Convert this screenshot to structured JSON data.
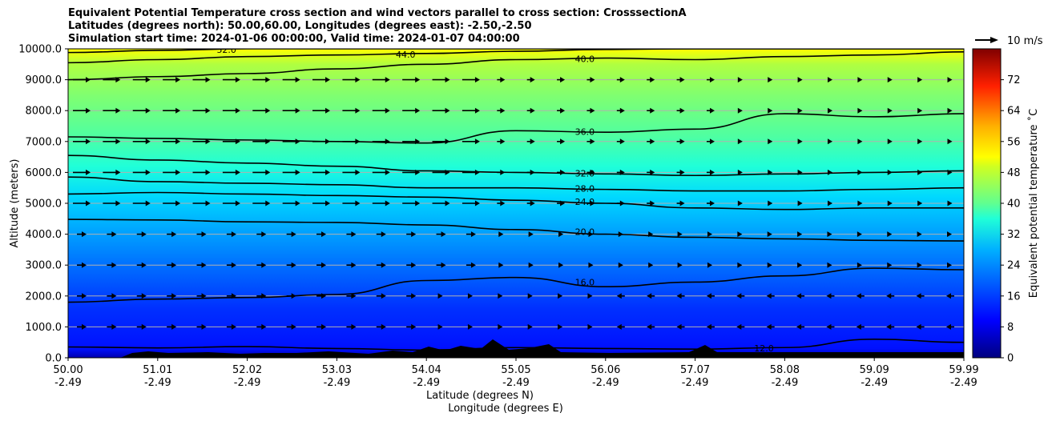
{
  "header": {
    "title_line1": "Equivalent Potential Temperature cross section and wind vectors parallel to cross section: CrosssectionA",
    "title_line2": "Latitudes (degrees north): 50.00,60.00, Longitudes (degrees east): -2.50,-2.50",
    "title_line3": "Simulation start time: 2024-01-06 00:00:00, Valid time: 2024-01-07 04:00:00"
  },
  "chart_data": {
    "type": "heatmap",
    "ylabel": "Altitude (meters)",
    "xlabel_lat": "Latitude (degrees N)",
    "xlabel_lon": "Longitude (degrees E)",
    "ylim": [
      0,
      10000
    ],
    "y_ticks": [
      "0.0",
      "1000.0",
      "2000.0",
      "3000.0",
      "4000.0",
      "5000.0",
      "6000.0",
      "7000.0",
      "8000.0",
      "9000.0",
      "10000.0"
    ],
    "x_ticks": [
      {
        "lat": "50.00",
        "lon": "-2.49"
      },
      {
        "lat": "51.01",
        "lon": "-2.49"
      },
      {
        "lat": "52.02",
        "lon": "-2.49"
      },
      {
        "lat": "53.03",
        "lon": "-2.49"
      },
      {
        "lat": "54.04",
        "lon": "-2.49"
      },
      {
        "lat": "55.05",
        "lon": "-2.49"
      },
      {
        "lat": "56.06",
        "lon": "-2.49"
      },
      {
        "lat": "57.07",
        "lon": "-2.49"
      },
      {
        "lat": "58.08",
        "lon": "-2.49"
      },
      {
        "lat": "59.09",
        "lon": "-2.49"
      },
      {
        "lat": "59.99",
        "lon": "-2.49"
      }
    ],
    "colorbar": {
      "label": "Equivalent potential temperature ˚C",
      "min": 0,
      "max": 80,
      "ticks": [
        "0",
        "8",
        "16",
        "24",
        "32",
        "40",
        "48",
        "56",
        "64",
        "72"
      ]
    },
    "quiver_key": "10 m/s",
    "contours": [
      {
        "level": 12,
        "label": "12.0",
        "alt_m": [
          350,
          320,
          360,
          300,
          250,
          330,
          300,
          280,
          330,
          600,
          500
        ]
      },
      {
        "level": 16,
        "label": "16.0",
        "alt_m": [
          1800,
          1900,
          1950,
          2050,
          2500,
          2600,
          2300,
          2450,
          2650,
          2900,
          2850
        ]
      },
      {
        "level": 20,
        "label": "20.0",
        "alt_m": [
          4480,
          4460,
          4400,
          4380,
          4300,
          4150,
          4000,
          3900,
          3850,
          3800,
          3780
        ]
      },
      {
        "level": 24,
        "label": "24.0",
        "alt_m": [
          5300,
          5350,
          5300,
          5250,
          5200,
          5100,
          5000,
          4850,
          4800,
          4850,
          4850
        ]
      },
      {
        "level": 28,
        "label": "28.0",
        "alt_m": [
          5850,
          5700,
          5650,
          5600,
          5500,
          5500,
          5450,
          5400,
          5400,
          5450,
          5500
        ]
      },
      {
        "level": 32,
        "label": "32.0",
        "alt_m": [
          6550,
          6400,
          6300,
          6200,
          6050,
          6000,
          5950,
          5900,
          5950,
          6000,
          6050
        ]
      },
      {
        "level": 36,
        "label": "36.0",
        "alt_m": [
          7150,
          7100,
          7050,
          7000,
          6950,
          7350,
          7300,
          7400,
          7900,
          7800,
          7900
        ]
      },
      {
        "level": 40,
        "label": "40.0",
        "alt_m": [
          9000,
          9100,
          9200,
          9350,
          9500,
          9650,
          9700,
          9650,
          9750,
          9800,
          9900
        ]
      },
      {
        "level": 44,
        "label": "44.0",
        "alt_m": [
          9550,
          9650,
          9750,
          9800,
          9850,
          9920,
          9980,
          10000,
          10000,
          10000,
          10000
        ]
      },
      {
        "level": 52,
        "label": "52.0",
        "alt_m": [
          9880,
          9950,
          10000,
          10000,
          10000,
          10000,
          10000,
          10000,
          10000,
          10000,
          10000
        ]
      }
    ],
    "wind_rows_m": [
      9000,
      8000,
      7000,
      6000,
      5000,
      4000,
      3000,
      2000,
      1000
    ]
  }
}
